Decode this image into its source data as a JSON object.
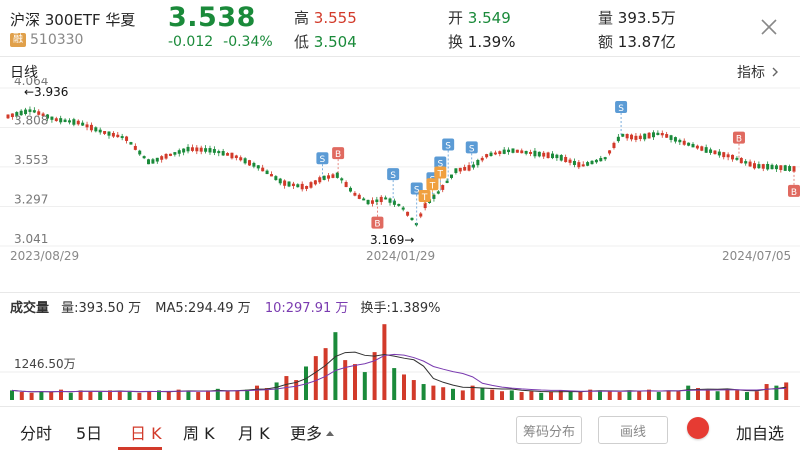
{
  "header": {
    "name": "沪深 300ETF 华夏",
    "badge": "融",
    "code": "510330",
    "price": "3.538",
    "change": "-0.012",
    "change_pct": "-0.34%",
    "high_label": "高",
    "high_value": "3.555",
    "low_label": "低",
    "low_value": "3.504",
    "open_label": "开",
    "open_value": "3.549",
    "turnover_label": "换",
    "turnover_value": "1.39%",
    "volume_label": "量",
    "volume_value": "393.5万",
    "amount_label": "额",
    "amount_value": "13.87亿"
  },
  "kline": {
    "title": "日线",
    "indicator_label": "指标",
    "max_annotation": "←3.936",
    "min_annotation": "3.169→",
    "y_ticks": [
      "4.064",
      "3.808",
      "3.553",
      "3.297",
      "3.041"
    ],
    "x_ticks": [
      "2023/08/29",
      "2024/01/29",
      "2024/07/05"
    ]
  },
  "volume": {
    "title": "成交量",
    "vol": "量:393.50 万",
    "ma5": "MA5:294.49 万",
    "ma10": "10:297.91 万",
    "turnover": "换手:1.389%",
    "axis_label": "1246.50万"
  },
  "tabs": {
    "fenshi": "分时",
    "five_day": "5日",
    "day_k": "日 K",
    "week_k": "周 K",
    "month_k": "月 K",
    "more": "更多",
    "chip": "筹码分布",
    "draw": "画线",
    "add_fav": "加自选"
  },
  "colors": {
    "up": "#d23a2a",
    "down": "#1a8a3a",
    "buy_marker": "#e06a60",
    "sell_marker": "#5b9bd5",
    "t_marker": "#f0a040",
    "ma10_line": "#7a3bb0"
  },
  "chart_data": {
    "type": "candlestick",
    "y_axis": {
      "min": 3.041,
      "max": 4.064
    },
    "points": [
      [
        0,
        3.88
      ],
      [
        0.03,
        3.92
      ],
      [
        0.06,
        3.86
      ],
      [
        0.09,
        3.84
      ],
      [
        0.12,
        3.78
      ],
      [
        0.15,
        3.74
      ],
      [
        0.18,
        3.58
      ],
      [
        0.2,
        3.62
      ],
      [
        0.23,
        3.67
      ],
      [
        0.26,
        3.66
      ],
      [
        0.29,
        3.62
      ],
      [
        0.32,
        3.55
      ],
      [
        0.35,
        3.45
      ],
      [
        0.38,
        3.42
      ],
      [
        0.4,
        3.48
      ],
      [
        0.42,
        3.5
      ],
      [
        0.44,
        3.38
      ],
      [
        0.46,
        3.32
      ],
      [
        0.48,
        3.35
      ],
      [
        0.5,
        3.3
      ],
      [
        0.52,
        3.18
      ],
      [
        0.53,
        3.3
      ],
      [
        0.55,
        3.4
      ],
      [
        0.57,
        3.53
      ],
      [
        0.59,
        3.55
      ],
      [
        0.61,
        3.63
      ],
      [
        0.64,
        3.66
      ],
      [
        0.67,
        3.64
      ],
      [
        0.7,
        3.62
      ],
      [
        0.73,
        3.56
      ],
      [
        0.76,
        3.61
      ],
      [
        0.78,
        3.76
      ],
      [
        0.8,
        3.74
      ],
      [
        0.83,
        3.77
      ],
      [
        0.86,
        3.71
      ],
      [
        0.89,
        3.66
      ],
      [
        0.92,
        3.62
      ],
      [
        0.95,
        3.56
      ],
      [
        0.98,
        3.55
      ],
      [
        1.0,
        3.54
      ]
    ],
    "sell_markers": [
      [
        0.4,
        "S"
      ],
      [
        0.49,
        "S"
      ],
      [
        0.52,
        "S"
      ],
      [
        0.54,
        "S"
      ],
      [
        0.55,
        "S"
      ],
      [
        0.56,
        "S"
      ],
      [
        0.59,
        "S"
      ],
      [
        0.78,
        "S"
      ]
    ],
    "buy_markers": [
      [
        0.42,
        "B"
      ],
      [
        0.47,
        "B"
      ],
      [
        0.93,
        "B"
      ],
      [
        1.0,
        "B"
      ]
    ],
    "t_markers": [
      [
        0.53,
        "T"
      ],
      [
        0.54,
        "T"
      ],
      [
        0.55,
        "T"
      ]
    ],
    "volume_values": [
      0.12,
      0.1,
      0.09,
      0.11,
      0.1,
      0.13,
      0.09,
      0.12,
      0.11,
      0.1,
      0.12,
      0.11,
      0.1,
      0.09,
      0.11,
      0.12,
      0.1,
      0.13,
      0.11,
      0.1,
      0.12,
      0.14,
      0.11,
      0.12,
      0.13,
      0.18,
      0.15,
      0.22,
      0.3,
      0.25,
      0.42,
      0.55,
      0.65,
      0.85,
      0.5,
      0.45,
      0.35,
      0.6,
      0.95,
      0.4,
      0.32,
      0.25,
      0.2,
      0.18,
      0.16,
      0.14,
      0.12,
      0.18,
      0.15,
      0.13,
      0.11,
      0.12,
      0.1,
      0.11,
      0.09,
      0.1,
      0.12,
      0.11,
      0.1,
      0.13,
      0.12,
      0.11,
      0.1,
      0.12,
      0.11,
      0.13,
      0.1,
      0.12,
      0.11,
      0.18,
      0.15,
      0.12,
      0.11,
      0.14,
      0.12,
      0.1,
      0.11,
      0.2,
      0.18,
      0.22
    ]
  }
}
